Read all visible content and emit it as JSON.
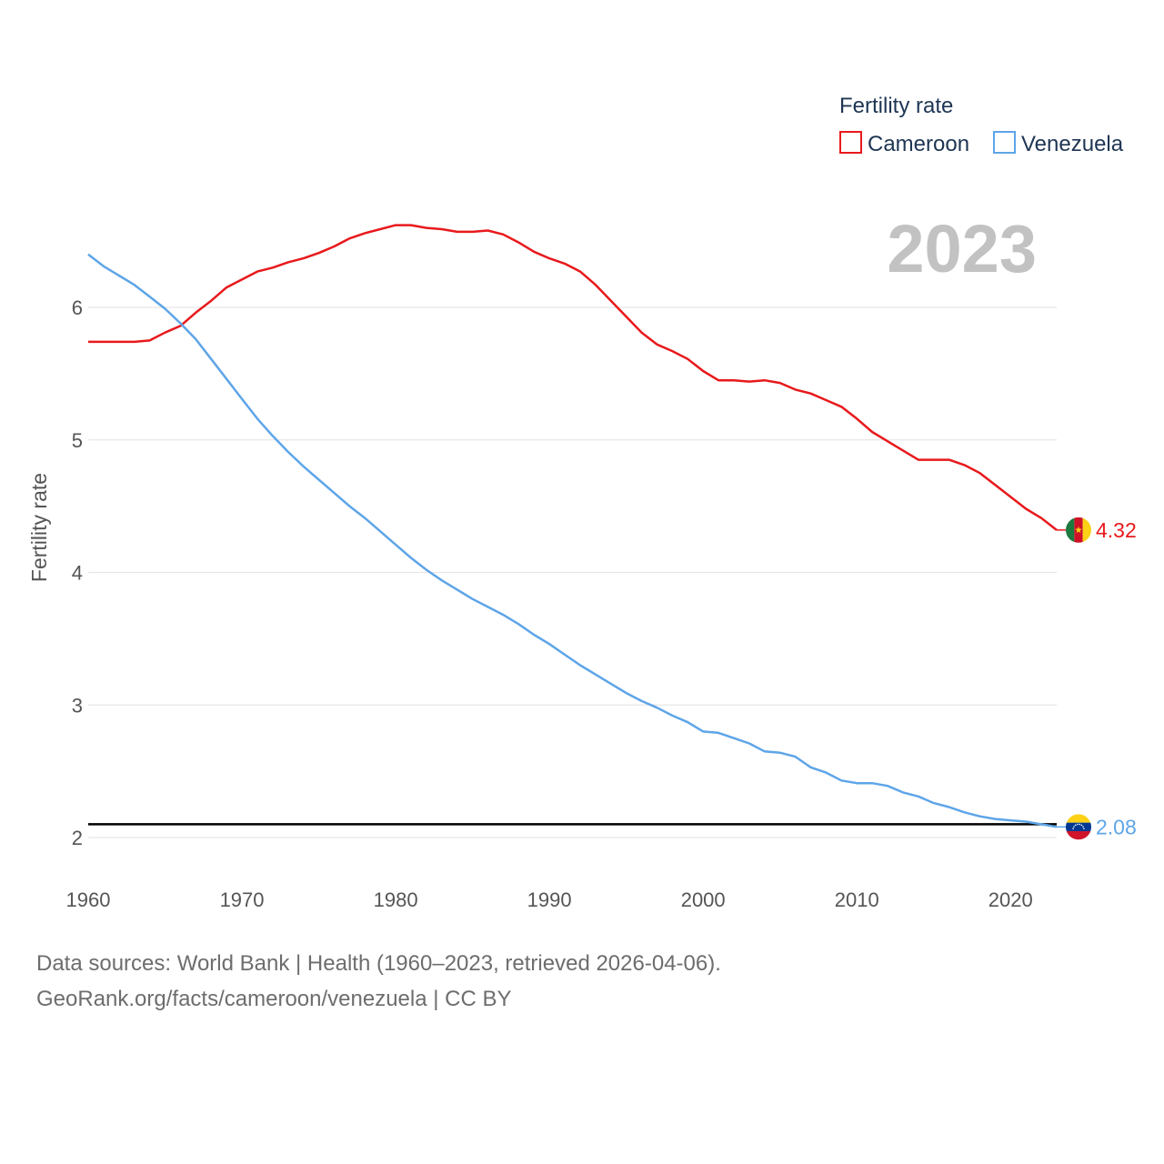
{
  "chart_data": {
    "type": "line",
    "year_label": "2023",
    "ylabel": "Fertility rate",
    "xlabel": "",
    "xlim": [
      1960,
      2023
    ],
    "ylim": [
      1.9,
      6.9
    ],
    "yticks": [
      2,
      3,
      4,
      5,
      6
    ],
    "xticks": [
      1960,
      1970,
      1980,
      1990,
      2000,
      2010,
      2020
    ],
    "ytick_labels": [
      "2",
      "3",
      "4",
      "5",
      "6"
    ],
    "xtick_labels": [
      "1960",
      "1970",
      "1980",
      "1990",
      "2000",
      "2010",
      "2020"
    ],
    "reference_line": 2.1,
    "legend": {
      "title": "Fertility rate",
      "position": "top-right"
    },
    "x": [
      1960,
      1961,
      1962,
      1963,
      1964,
      1965,
      1966,
      1967,
      1968,
      1969,
      1970,
      1971,
      1972,
      1973,
      1974,
      1975,
      1976,
      1977,
      1978,
      1979,
      1980,
      1981,
      1982,
      1983,
      1984,
      1985,
      1986,
      1987,
      1988,
      1989,
      1990,
      1991,
      1992,
      1993,
      1994,
      1995,
      1996,
      1997,
      1998,
      1999,
      2000,
      2001,
      2002,
      2003,
      2004,
      2005,
      2006,
      2007,
      2008,
      2009,
      2010,
      2011,
      2012,
      2013,
      2014,
      2015,
      2016,
      2017,
      2018,
      2019,
      2020,
      2021,
      2022,
      2023
    ],
    "series": [
      {
        "name": "Cameroon",
        "color": "#e8191c",
        "end_label": "4.32",
        "flag": "cameroon-flag",
        "values": [
          5.74,
          5.74,
          5.74,
          5.74,
          5.75,
          5.81,
          5.86,
          5.96,
          6.05,
          6.15,
          6.21,
          6.27,
          6.3,
          6.34,
          6.37,
          6.41,
          6.46,
          6.52,
          6.56,
          6.59,
          6.62,
          6.62,
          6.6,
          6.59,
          6.57,
          6.57,
          6.58,
          6.55,
          6.49,
          6.42,
          6.37,
          6.33,
          6.27,
          6.17,
          6.05,
          5.93,
          5.81,
          5.72,
          5.67,
          5.61,
          5.52,
          5.45,
          5.45,
          5.44,
          5.45,
          5.43,
          5.38,
          5.35,
          5.3,
          5.25,
          5.16,
          5.06,
          4.99,
          4.92,
          4.85,
          4.85,
          4.85,
          4.81,
          4.75,
          4.66,
          4.57,
          4.48,
          4.41,
          4.32
        ]
      },
      {
        "name": "Venezuela",
        "color": "#5ea5e8",
        "end_label": "2.08",
        "flag": "venezuela-flag",
        "values": [
          6.4,
          6.31,
          6.24,
          6.17,
          6.08,
          5.99,
          5.88,
          5.76,
          5.61,
          5.46,
          5.31,
          5.16,
          5.03,
          4.91,
          4.8,
          4.7,
          4.6,
          4.5,
          4.41,
          4.31,
          4.21,
          4.11,
          4.02,
          3.94,
          3.87,
          3.8,
          3.74,
          3.68,
          3.61,
          3.53,
          3.46,
          3.38,
          3.3,
          3.23,
          3.16,
          3.09,
          3.03,
          2.98,
          2.92,
          2.87,
          2.8,
          2.79,
          2.75,
          2.71,
          2.65,
          2.64,
          2.61,
          2.53,
          2.49,
          2.43,
          2.41,
          2.41,
          2.39,
          2.34,
          2.31,
          2.26,
          2.23,
          2.19,
          2.16,
          2.14,
          2.13,
          2.12,
          2.1,
          2.08
        ]
      }
    ]
  },
  "footer": {
    "line1": "Data sources: World Bank | Health (1960–2023, retrieved 2026-04-06).",
    "line2": "GeoRank.org/facts/cameroon/venezuela | CC BY"
  },
  "colors": {
    "grid": "#e6e6e6",
    "reference": "#000000",
    "year_label": "#c2c2c2",
    "cameroon_green": "#1b7a3e",
    "cameroon_red": "#ce1126",
    "cameroon_yellow": "#fcd116",
    "venezuela_yellow": "#fcd116",
    "venezuela_blue": "#003893",
    "venezuela_red": "#cf142b"
  }
}
